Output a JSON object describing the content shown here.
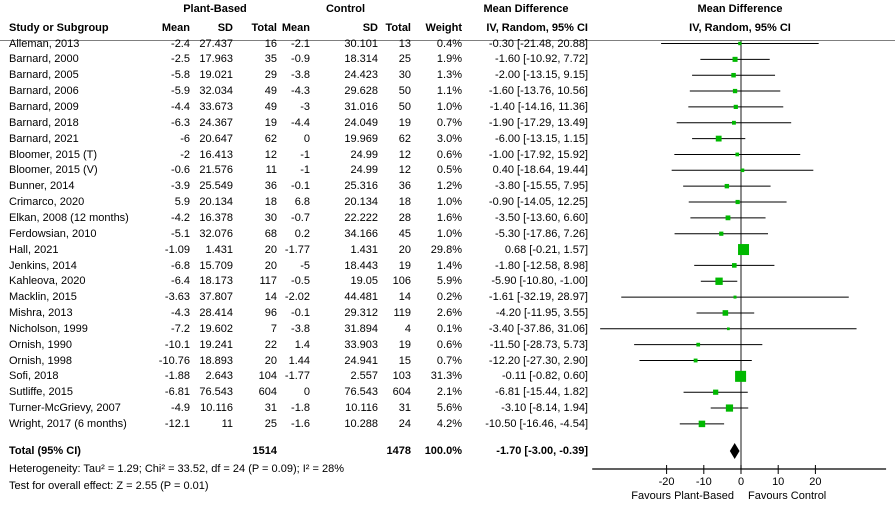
{
  "title": "Forest plot - Mean Difference, IV, Random, 95% CI",
  "header": {
    "group1": "Plant-Based",
    "group2": "Control",
    "col_study": "Study or Subgroup",
    "col_mean1": "Mean",
    "col_sd1": "SD",
    "col_total1": "Total",
    "col_mean2": "Mean",
    "col_sd2": "SD",
    "col_total2": "Total",
    "col_weight": "Weight",
    "md_text_title": "Mean Difference",
    "md_text_sub": "IV, Random, 95% CI",
    "md_plot_title": "Mean Difference",
    "md_plot_sub": "IV, Random, 95% CI"
  },
  "studies": [
    {
      "name": "Alleman, 2013",
      "m1": "-2.4",
      "sd1": "27.437",
      "n1": "16",
      "m2": "-2.1",
      "sd2": "30.101",
      "n2": "13",
      "weight": "0.4%",
      "ci": "-0.30 [-21.48, 20.88]",
      "est": -0.3,
      "lo": -21.48,
      "hi": 20.88,
      "w": 0.4
    },
    {
      "name": "Barnard, 2000",
      "m1": "-2.5",
      "sd1": "17.963",
      "n1": "35",
      "m2": "-0.9",
      "sd2": "18.314",
      "n2": "25",
      "weight": "1.9%",
      "ci": "-1.60 [-10.92, 7.72]",
      "est": -1.6,
      "lo": -10.92,
      "hi": 7.72,
      "w": 1.9
    },
    {
      "name": "Barnard, 2005",
      "m1": "-5.8",
      "sd1": "19.021",
      "n1": "29",
      "m2": "-3.8",
      "sd2": "24.423",
      "n2": "30",
      "weight": "1.3%",
      "ci": "-2.00 [-13.15, 9.15]",
      "est": -2.0,
      "lo": -13.15,
      "hi": 9.15,
      "w": 1.3
    },
    {
      "name": "Barnard, 2006",
      "m1": "-5.9",
      "sd1": "32.034",
      "n1": "49",
      "m2": "-4.3",
      "sd2": "29.628",
      "n2": "50",
      "weight": "1.1%",
      "ci": "-1.60 [-13.76, 10.56]",
      "est": -1.6,
      "lo": -13.76,
      "hi": 10.56,
      "w": 1.1
    },
    {
      "name": "Barnard, 2009",
      "m1": "-4.4",
      "sd1": "33.673",
      "n1": "49",
      "m2": "-3",
      "sd2": "31.016",
      "n2": "50",
      "weight": "1.0%",
      "ci": "-1.40 [-14.16, 11.36]",
      "est": -1.4,
      "lo": -14.16,
      "hi": 11.36,
      "w": 1.0
    },
    {
      "name": "Barnard, 2018",
      "m1": "-6.3",
      "sd1": "24.367",
      "n1": "19",
      "m2": "-4.4",
      "sd2": "24.049",
      "n2": "19",
      "weight": "0.7%",
      "ci": "-1.90 [-17.29, 13.49]",
      "est": -1.9,
      "lo": -17.29,
      "hi": 13.49,
      "w": 0.7
    },
    {
      "name": "Barnard, 2021",
      "m1": "-6",
      "sd1": "20.647",
      "n1": "62",
      "m2": "0",
      "sd2": "19.969",
      "n2": "62",
      "weight": "3.0%",
      "ci": "-6.00 [-13.15, 1.15]",
      "est": -6.0,
      "lo": -13.15,
      "hi": 1.15,
      "w": 3.0
    },
    {
      "name": "Bloomer, 2015 (T)",
      "m1": "-2",
      "sd1": "16.413",
      "n1": "12",
      "m2": "-1",
      "sd2": "24.99",
      "n2": "12",
      "weight": "0.6%",
      "ci": "-1.00 [-17.92, 15.92]",
      "est": -1.0,
      "lo": -17.92,
      "hi": 15.92,
      "w": 0.6
    },
    {
      "name": "Bloomer, 2015 (V)",
      "m1": "-0.6",
      "sd1": "21.576",
      "n1": "11",
      "m2": "-1",
      "sd2": "24.99",
      "n2": "12",
      "weight": "0.5%",
      "ci": "0.40 [-18.64, 19.44]",
      "est": 0.4,
      "lo": -18.64,
      "hi": 19.44,
      "w": 0.5
    },
    {
      "name": "Bunner, 2014",
      "m1": "-3.9",
      "sd1": "25.549",
      "n1": "36",
      "m2": "-0.1",
      "sd2": "25.316",
      "n2": "36",
      "weight": "1.2%",
      "ci": "-3.80 [-15.55, 7.95]",
      "est": -3.8,
      "lo": -15.55,
      "hi": 7.95,
      "w": 1.2
    },
    {
      "name": "Crimarco, 2020",
      "m1": "5.9",
      "sd1": "20.134",
      "n1": "18",
      "m2": "6.8",
      "sd2": "20.134",
      "n2": "18",
      "weight": "1.0%",
      "ci": "-0.90 [-14.05, 12.25]",
      "est": -0.9,
      "lo": -14.05,
      "hi": 12.25,
      "w": 1.0
    },
    {
      "name": "Elkan, 2008 (12 months)",
      "m1": "-4.2",
      "sd1": "16.378",
      "n1": "30",
      "m2": "-0.7",
      "sd2": "22.222",
      "n2": "28",
      "weight": "1.6%",
      "ci": "-3.50 [-13.60, 6.60]",
      "est": -3.5,
      "lo": -13.6,
      "hi": 6.6,
      "w": 1.6
    },
    {
      "name": "Ferdowsian, 2010",
      "m1": "-5.1",
      "sd1": "32.076",
      "n1": "68",
      "m2": "0.2",
      "sd2": "34.166",
      "n2": "45",
      "weight": "1.0%",
      "ci": "-5.30 [-17.86, 7.26]",
      "est": -5.3,
      "lo": -17.86,
      "hi": 7.26,
      "w": 1.0
    },
    {
      "name": "Hall, 2021",
      "m1": "-1.09",
      "sd1": "1.431",
      "n1": "20",
      "m2": "-1.77",
      "sd2": "1.431",
      "n2": "20",
      "weight": "29.8%",
      "ci": "0.68 [-0.21, 1.57]",
      "est": 0.68,
      "lo": -0.21,
      "hi": 1.57,
      "w": 29.8
    },
    {
      "name": "Jenkins, 2014",
      "m1": "-6.8",
      "sd1": "15.709",
      "n1": "20",
      "m2": "-5",
      "sd2": "18.443",
      "n2": "19",
      "weight": "1.4%",
      "ci": "-1.80 [-12.58, 8.98]",
      "est": -1.8,
      "lo": -12.58,
      "hi": 8.98,
      "w": 1.4
    },
    {
      "name": "Kahleova, 2020",
      "m1": "-6.4",
      "sd1": "18.173",
      "n1": "117",
      "m2": "-0.5",
      "sd2": "19.05",
      "n2": "106",
      "weight": "5.9%",
      "ci": "-5.90 [-10.80, -1.00]",
      "est": -5.9,
      "lo": -10.8,
      "hi": -1.0,
      "w": 5.9
    },
    {
      "name": "Macklin, 2015",
      "m1": "-3.63",
      "sd1": "37.807",
      "n1": "14",
      "m2": "-2.02",
      "sd2": "44.481",
      "n2": "14",
      "weight": "0.2%",
      "ci": "-1.61 [-32.19, 28.97]",
      "est": -1.61,
      "lo": -32.19,
      "hi": 28.97,
      "w": 0.2
    },
    {
      "name": "Mishra, 2013",
      "m1": "-4.3",
      "sd1": "28.414",
      "n1": "96",
      "m2": "-0.1",
      "sd2": "29.312",
      "n2": "119",
      "weight": "2.6%",
      "ci": "-4.20 [-11.95, 3.55]",
      "est": -4.2,
      "lo": -11.95,
      "hi": 3.55,
      "w": 2.6
    },
    {
      "name": "Nicholson, 1999",
      "m1": "-7.2",
      "sd1": "19.602",
      "n1": "7",
      "m2": "-3.8",
      "sd2": "31.894",
      "n2": "4",
      "weight": "0.1%",
      "ci": "-3.40 [-37.86, 31.06]",
      "est": -3.4,
      "lo": -37.86,
      "hi": 31.06,
      "w": 0.1
    },
    {
      "name": "Ornish, 1990",
      "m1": "-10.1",
      "sd1": "19.241",
      "n1": "22",
      "m2": "1.4",
      "sd2": "33.903",
      "n2": "19",
      "weight": "0.6%",
      "ci": "-11.50 [-28.73, 5.73]",
      "est": -11.5,
      "lo": -28.73,
      "hi": 5.73,
      "w": 0.6
    },
    {
      "name": "Ornish, 1998",
      "m1": "-10.76",
      "sd1": "18.893",
      "n1": "20",
      "m2": "1.44",
      "sd2": "24.941",
      "n2": "15",
      "weight": "0.7%",
      "ci": "-12.20 [-27.30, 2.90]",
      "est": -12.2,
      "lo": -27.3,
      "hi": 2.9,
      "w": 0.7
    },
    {
      "name": "Sofi, 2018",
      "m1": "-1.88",
      "sd1": "2.643",
      "n1": "104",
      "m2": "-1.77",
      "sd2": "2.557",
      "n2": "103",
      "weight": "31.3%",
      "ci": "-0.11 [-0.82, 0.60]",
      "est": -0.11,
      "lo": -0.82,
      "hi": 0.6,
      "w": 31.3
    },
    {
      "name": "Sutliffe, 2015",
      "m1": "-6.81",
      "sd1": "76.543",
      "n1": "604",
      "m2": "0",
      "sd2": "76.543",
      "n2": "604",
      "weight": "2.1%",
      "ci": "-6.81 [-15.44, 1.82]",
      "est": -6.81,
      "lo": -15.44,
      "hi": 1.82,
      "w": 2.1
    },
    {
      "name": "Turner-McGrievy, 2007",
      "m1": "-4.9",
      "sd1": "10.116",
      "n1": "31",
      "m2": "-1.8",
      "sd2": "10.116",
      "n2": "31",
      "weight": "5.6%",
      "ci": "-3.10 [-8.14, 1.94]",
      "est": -3.1,
      "lo": -8.14,
      "hi": 1.94,
      "w": 5.6
    },
    {
      "name": "Wright, 2017 (6 months)",
      "m1": "-12.1",
      "sd1": "11",
      "n1": "25",
      "m2": "-1.6",
      "sd2": "10.288",
      "n2": "24",
      "weight": "4.2%",
      "ci": "-10.50 [-16.46, -4.54]",
      "est": -10.5,
      "lo": -16.46,
      "hi": -4.54,
      "w": 4.2
    }
  ],
  "total": {
    "label": "Total (95% CI)",
    "n1": "1514",
    "n2": "1478",
    "weight": "100.0%",
    "ci": "-1.70 [-3.00, -0.39]",
    "est": -1.7,
    "lo": -3.0,
    "hi": -0.39
  },
  "footer": {
    "heterogeneity": "Heterogeneity: Tau² = 1.29; Chi² = 33.52, df = 24 (P = 0.09); I² = 28%",
    "overall_effect": "Test for overall effect: Z = 2.55 (P = 0.01)"
  },
  "axis": {
    "ticks": [
      -20,
      -10,
      0,
      10,
      20
    ],
    "xlim": [
      -40,
      39
    ],
    "favours_left": "Favours Plant-Based",
    "favours_right": "Favours Control"
  },
  "colors": {
    "marker_green": "#00b800",
    "diamond_black": "#000000",
    "ci_line": "#000000",
    "zero_line": "#404040",
    "separator": "#7f7f7f"
  },
  "chart_data": {
    "type": "scatter",
    "subtype": "forest-plot",
    "title": "Mean Difference, IV, Random, 95% CI",
    "xlabel_left": "Favours Plant-Based",
    "xlabel_right": "Favours Control",
    "xlim": [
      -40,
      39
    ],
    "xticks": [
      -20,
      -10,
      0,
      10,
      20
    ],
    "categories": [
      "Alleman, 2013",
      "Barnard, 2000",
      "Barnard, 2005",
      "Barnard, 2006",
      "Barnard, 2009",
      "Barnard, 2018",
      "Barnard, 2021",
      "Bloomer, 2015 (T)",
      "Bloomer, 2015 (V)",
      "Bunner, 2014",
      "Crimarco, 2020",
      "Elkan, 2008 (12 months)",
      "Ferdowsian, 2010",
      "Hall, 2021",
      "Jenkins, 2014",
      "Kahleova, 2020",
      "Macklin, 2015",
      "Mishra, 2013",
      "Nicholson, 1999",
      "Ornish, 1990",
      "Ornish, 1998",
      "Sofi, 2018",
      "Sutliffe, 2015",
      "Turner-McGrievy, 2007",
      "Wright, 2017 (6 months)"
    ],
    "series": [
      {
        "name": "mean_difference",
        "values": [
          -0.3,
          -1.6,
          -2.0,
          -1.6,
          -1.4,
          -1.9,
          -6.0,
          -1.0,
          0.4,
          -3.8,
          -0.9,
          -3.5,
          -5.3,
          0.68,
          -1.8,
          -5.9,
          -1.61,
          -4.2,
          -3.4,
          -11.5,
          -12.2,
          -0.11,
          -6.81,
          -3.1,
          -10.5
        ]
      },
      {
        "name": "ci_lower",
        "values": [
          -21.48,
          -10.92,
          -13.15,
          -13.76,
          -14.16,
          -17.29,
          -13.15,
          -17.92,
          -18.64,
          -15.55,
          -14.05,
          -13.6,
          -17.86,
          -0.21,
          -12.58,
          -10.8,
          -32.19,
          -11.95,
          -37.86,
          -28.73,
          -27.3,
          -0.82,
          -15.44,
          -8.14,
          -16.46
        ]
      },
      {
        "name": "ci_upper",
        "values": [
          20.88,
          7.72,
          9.15,
          10.56,
          11.36,
          13.49,
          1.15,
          15.92,
          19.44,
          7.95,
          12.25,
          6.6,
          7.26,
          1.57,
          8.98,
          -1.0,
          28.97,
          3.55,
          31.06,
          5.73,
          2.9,
          0.6,
          1.82,
          1.94,
          -4.54
        ]
      },
      {
        "name": "weight_pct",
        "values": [
          0.4,
          1.9,
          1.3,
          1.1,
          1.0,
          0.7,
          3.0,
          0.6,
          0.5,
          1.2,
          1.0,
          1.6,
          1.0,
          29.8,
          1.4,
          5.9,
          0.2,
          2.6,
          0.1,
          0.6,
          0.7,
          31.3,
          2.1,
          5.6,
          4.2
        ]
      }
    ],
    "summary": {
      "name": "Total (95% CI)",
      "value": -1.7,
      "ci_lower": -3.0,
      "ci_upper": -0.39
    }
  }
}
